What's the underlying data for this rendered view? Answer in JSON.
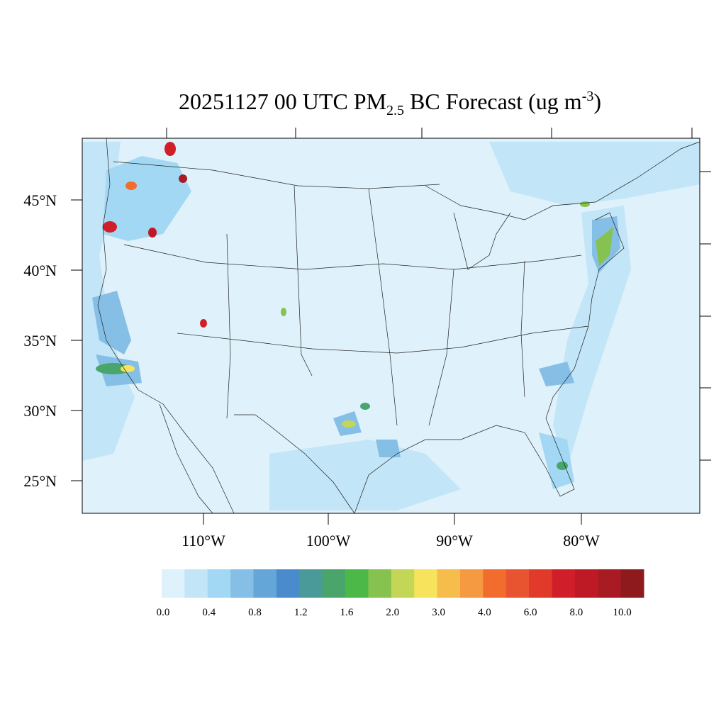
{
  "title": {
    "main": "20251127 00 UTC PM",
    "subscript": "2.5",
    "middle": " BC Forecast (ug m",
    "superscript": "-3",
    "end": ")"
  },
  "map": {
    "lat_labels": [
      "45°N",
      "40°N",
      "35°N",
      "30°N",
      "25°N"
    ],
    "lon_labels": [
      "110°W",
      "100°W",
      "90°W",
      "80°W"
    ]
  },
  "colorbar": {
    "colors": [
      "#dff1fa",
      "#c2e5f7",
      "#a2d8f3",
      "#85bfe6",
      "#65a6d8",
      "#4a8bcb",
      "#4a9a9a",
      "#4aa56c",
      "#4cb848",
      "#86c24f",
      "#c3d656",
      "#f7e45c",
      "#f6bc4c",
      "#f59a40",
      "#f26c2d",
      "#e85430",
      "#e13a2b",
      "#d11f2a",
      "#bd1a26",
      "#a91b22",
      "#8f1a1e"
    ],
    "labels": [
      "0.0",
      "0.4",
      "0.8",
      "1.2",
      "1.6",
      "2.0",
      "3.0",
      "4.0",
      "6.0",
      "8.0",
      "10.0"
    ]
  }
}
